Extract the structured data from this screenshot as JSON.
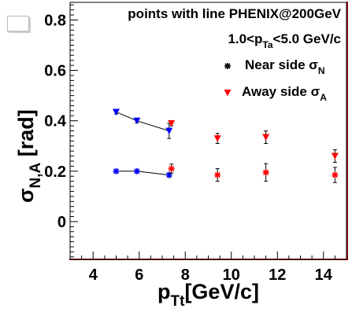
{
  "canvas_label": "",
  "chart_data": {
    "type": "scatter",
    "title": "points with line PHENIX@200GeV",
    "subtitle": {
      "main": "1.0<p",
      "sub": "Ta",
      "tail": "<5.0 GeV/c"
    },
    "xlabel": {
      "main": "p",
      "sub": "Tt",
      "tail": "[GeV/c]"
    },
    "ylabel": {
      "main": "σ",
      "sub": "N,A",
      "tail": " [rad]"
    },
    "xlim": [
      3,
      15
    ],
    "ylim": [
      -0.15,
      0.87
    ],
    "xticks": [
      4,
      6,
      8,
      10,
      12,
      14
    ],
    "yticks": [
      0,
      0.2,
      0.4,
      0.6,
      0.8
    ],
    "xtick_labels": [
      "4",
      "6",
      "8",
      "10",
      "12",
      "14"
    ],
    "ytick_labels": [
      "0",
      "0.2",
      "0.4",
      "0.6",
      "0.8"
    ],
    "legend_position": "top-right",
    "series": [
      {
        "label": {
          "main": "Near side σ",
          "sub": "N"
        },
        "marker": "star",
        "color": "#000000",
        "points": [
          {
            "x": 5.0,
            "y": 0.2,
            "err": 0.005,
            "color": "#0000ff"
          },
          {
            "x": 5.9,
            "y": 0.2,
            "err": 0.005,
            "color": "#0000ff"
          },
          {
            "x": 7.3,
            "y": 0.185,
            "err": 0.008,
            "color": "#0000ff"
          },
          {
            "x": 7.4,
            "y": 0.21,
            "err": 0.018,
            "color": "#ff0000"
          },
          {
            "x": 9.4,
            "y": 0.185,
            "err": 0.025,
            "color": "#ff0000"
          },
          {
            "x": 11.5,
            "y": 0.195,
            "err": 0.035,
            "color": "#ff0000"
          },
          {
            "x": 14.5,
            "y": 0.185,
            "err": 0.03,
            "color": "#ff0000"
          }
        ],
        "line_points": 3
      },
      {
        "label": {
          "main": "Away side σ",
          "sub": "A"
        },
        "marker": "triangle-down",
        "color": "#ff0000",
        "points": [
          {
            "x": 5.0,
            "y": 0.435,
            "err": 0.008,
            "color": "#0000ff"
          },
          {
            "x": 5.9,
            "y": 0.4,
            "err": 0.008,
            "color": "#0000ff"
          },
          {
            "x": 7.3,
            "y": 0.36,
            "err": 0.03,
            "color": "#0000ff"
          },
          {
            "x": 7.4,
            "y": 0.39,
            "err": 0.01,
            "color": "#ff0000"
          },
          {
            "x": 9.4,
            "y": 0.33,
            "err": 0.02,
            "color": "#ff0000"
          },
          {
            "x": 11.5,
            "y": 0.335,
            "err": 0.025,
            "color": "#ff0000"
          },
          {
            "x": 14.5,
            "y": 0.26,
            "err": 0.025,
            "color": "#ff0000"
          }
        ],
        "line_points": 3
      }
    ]
  }
}
